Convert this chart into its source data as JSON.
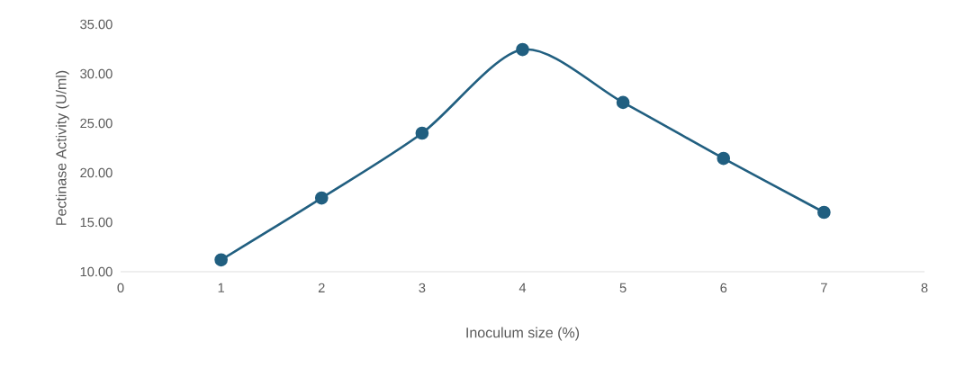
{
  "chart_data": {
    "type": "line",
    "xlabel": "Inoculum size (%)",
    "ylabel": "Pectinase Activity (U/ml)",
    "x": [
      1,
      2,
      3,
      4,
      5,
      6,
      7
    ],
    "values": [
      11.2,
      17.45,
      24.0,
      32.45,
      27.1,
      21.45,
      16.0
    ],
    "color": "#215f80",
    "marker": "circle",
    "xlim": [
      0,
      8
    ],
    "xticks": [
      0,
      1,
      2,
      3,
      4,
      5,
      6,
      7,
      8
    ],
    "ylim": [
      10,
      35
    ],
    "yticks": [
      {
        "value": 10,
        "label": "10.00"
      },
      {
        "value": 15,
        "label": "15.00"
      },
      {
        "value": 20,
        "label": "20.00"
      },
      {
        "value": 25,
        "label": "25.00"
      },
      {
        "value": 30,
        "label": "30.00"
      },
      {
        "value": 35,
        "label": "35.00"
      }
    ]
  }
}
